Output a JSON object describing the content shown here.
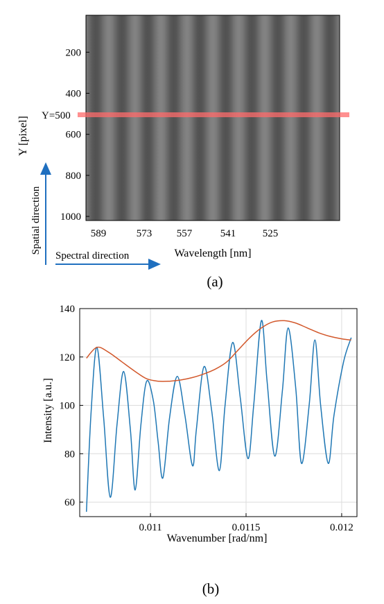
{
  "panel_a": {
    "ylabel": "Y [pixel]",
    "xlabel": "Wavelength [nm]",
    "yticks": [
      200,
      400,
      600,
      800,
      1000
    ],
    "xticks": [
      589,
      573,
      557,
      541,
      525
    ],
    "marker_label": "Y=500",
    "marker_y": 500,
    "marker_color": "#ff6b6b",
    "spatial_label": "Spatial direction",
    "spectral_label": "Spectral direction",
    "arrow_color": "#1f6fbf",
    "caption": "(a)"
  },
  "chart_data": {
    "type": "line",
    "title": "",
    "xlabel": "Wavenumber [rad/nm]",
    "ylabel": "Intensity [a.u.]",
    "xlim": [
      0.01063,
      0.01208
    ],
    "ylim": [
      54,
      140
    ],
    "xticks": [
      0.011,
      0.0115,
      0.012
    ],
    "xtick_labels": [
      "0.011",
      "0.0115",
      "0.012"
    ],
    "yticks": [
      60,
      80,
      100,
      120,
      140
    ],
    "grid": true,
    "series": [
      {
        "role": "signal",
        "color": "#1f77b4",
        "x": [
          0.010665,
          0.01069,
          0.01072,
          0.010755,
          0.01079,
          0.010825,
          0.01086,
          0.010895,
          0.01092,
          0.01095,
          0.01098,
          0.011015,
          0.01104,
          0.011065,
          0.0111,
          0.01114,
          0.01118,
          0.01122,
          0.01124,
          0.01128,
          0.01132,
          0.01136,
          0.01139,
          0.01143,
          0.01147,
          0.01151,
          0.01154,
          0.01158,
          0.01161,
          0.01165,
          0.01169,
          0.01172,
          0.01176,
          0.01179,
          0.01183,
          0.01186,
          0.01189,
          0.01193,
          0.01196,
          0.01201,
          0.01205
        ],
        "y": [
          56,
          98,
          124,
          95,
          62,
          92,
          114,
          90,
          65,
          92,
          110,
          102,
          85,
          70,
          95,
          112,
          96,
          75,
          90,
          116,
          98,
          73,
          100,
          126,
          103,
          78,
          100,
          135,
          110,
          79,
          106,
          132,
          107,
          76,
          100,
          127,
          100,
          76,
          96,
          118,
          128
        ]
      },
      {
        "role": "envelope",
        "color": "#d2572a",
        "x": [
          0.010665,
          0.01072,
          0.01078,
          0.01085,
          0.01092,
          0.01098,
          0.01104,
          0.0111,
          0.01116,
          0.01122,
          0.01128,
          0.01134,
          0.0114,
          0.01146,
          0.01152,
          0.01158,
          0.01164,
          0.0117,
          0.01176,
          0.01182,
          0.01188,
          0.01194,
          0.012,
          0.01205
        ],
        "y": [
          119.5,
          124,
          122,
          118,
          114,
          111,
          110,
          110,
          110.5,
          111.5,
          113,
          115,
          118,
          123,
          128,
          132,
          134.5,
          135,
          134,
          132,
          130,
          128.5,
          127.5,
          127
        ]
      }
    ]
  },
  "caption_b": "(b)"
}
